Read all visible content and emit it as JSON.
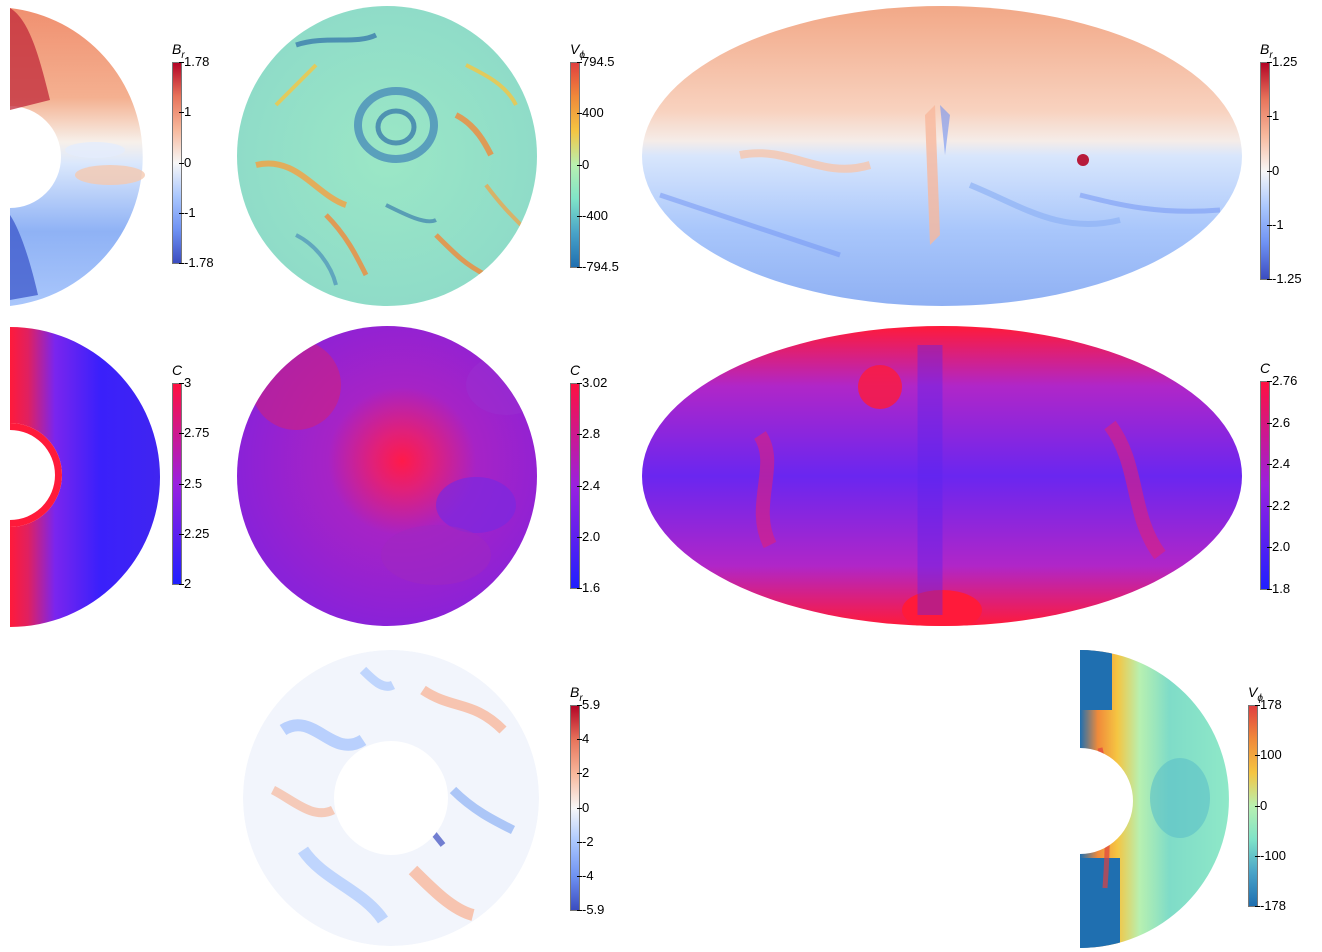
{
  "colors": {
    "rdbu": [
      "#3b4cc0",
      "#6f92f3",
      "#aac7fd",
      "#f7f7f7",
      "#f7b89c",
      "#e7745b",
      "#b40426"
    ],
    "jet_like": [
      "#1f6fb0",
      "#49a3c8",
      "#7fe3c8",
      "#b8f0b0",
      "#f5c542",
      "#f08a3a",
      "#e04040"
    ],
    "blue_red": [
      "#2020ff",
      "#9a20e0",
      "#ff1040"
    ]
  },
  "colorbars": [
    {
      "id": "br-meridional-top",
      "symbol": "B",
      "sub": "r",
      "scheme": "rdbu",
      "labels": [
        "1.78",
        "1",
        "0",
        "-1",
        "-1.78"
      ]
    },
    {
      "id": "vphi-equatorial",
      "symbol": "V",
      "sub": "ϕ",
      "scheme": "jet_like",
      "labels": [
        "794.5",
        "400",
        "0",
        "-400",
        "-794.5"
      ]
    },
    {
      "id": "br-mollweide",
      "symbol": "B",
      "sub": "r",
      "scheme": "rdbu",
      "labels": [
        "1.25",
        "1",
        "0",
        "-1",
        "-1.25"
      ]
    },
    {
      "id": "c-meridional",
      "symbol": "C",
      "sub": "",
      "scheme": "blue_red",
      "labels": [
        "3",
        "2.75",
        "2.5",
        "2.25",
        "2"
      ]
    },
    {
      "id": "c-equatorial",
      "symbol": "C",
      "sub": "",
      "scheme": "blue_red",
      "labels": [
        "3.02",
        "2.8",
        "2.4",
        "2.0",
        "1.6"
      ]
    },
    {
      "id": "c-mollweide",
      "symbol": "C",
      "sub": "",
      "scheme": "blue_red",
      "labels": [
        "2.76",
        "2.6",
        "2.4",
        "2.2",
        "2.0",
        "1.8"
      ]
    },
    {
      "id": "br-equatorial-bottom",
      "symbol": "B",
      "sub": "r",
      "scheme": "rdbu",
      "labels": [
        "5.9",
        "4",
        "2",
        "0",
        "-2",
        "-4",
        "-5.9"
      ]
    },
    {
      "id": "vphi-meridional",
      "symbol": "V",
      "sub": "ϕ",
      "scheme": "jet_like",
      "labels": [
        "178",
        "100",
        "0",
        "-100",
        "-178"
      ]
    }
  ]
}
